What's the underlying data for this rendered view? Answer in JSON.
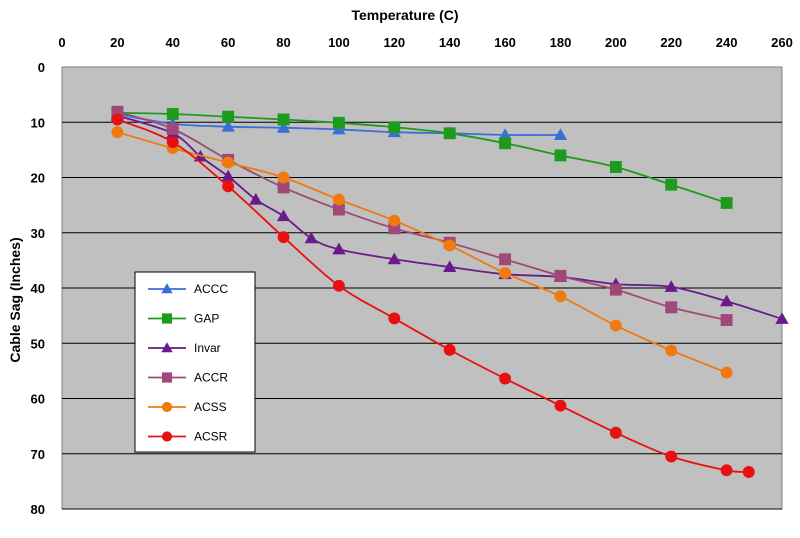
{
  "chart_data": {
    "type": "line",
    "xlabel": "Temperature (C)",
    "ylabel": "Cable Sag (Inches)",
    "xlim": [
      0,
      260
    ],
    "ylim": [
      0,
      80
    ],
    "x_ticks": [
      "0",
      "20",
      "40",
      "60",
      "80",
      "100",
      "120",
      "140",
      "160",
      "180",
      "200",
      "220",
      "240",
      "260"
    ],
    "y_ticks": [
      "0",
      "10",
      "20",
      "30",
      "40",
      "50",
      "60",
      "70",
      "80"
    ],
    "x_tick_values": [
      0,
      20,
      40,
      60,
      80,
      100,
      120,
      140,
      160,
      180,
      200,
      220,
      240,
      260
    ],
    "y_tick_values": [
      0,
      10,
      20,
      30,
      40,
      50,
      60,
      70,
      80
    ],
    "y_inverted": true,
    "x_axis_position": "top",
    "grid": "horizontal",
    "plot_background": "#c0c0c0",
    "legend_position": "lower-left",
    "series": [
      {
        "name": "ACCC",
        "color": "#3a6fd8",
        "marker": "triangle",
        "points": [
          [
            20,
            8.5
          ],
          [
            40,
            10.3
          ],
          [
            60,
            10.8
          ],
          [
            80,
            11.0
          ],
          [
            100,
            11.3
          ],
          [
            120,
            11.8
          ],
          [
            140,
            12.0
          ],
          [
            160,
            12.3
          ],
          [
            180,
            12.3
          ]
        ]
      },
      {
        "name": "GAP",
        "color": "#1e9a1e",
        "marker": "square",
        "points": [
          [
            20,
            8.3
          ],
          [
            40,
            8.5
          ],
          [
            60,
            9.0
          ],
          [
            80,
            9.5
          ],
          [
            100,
            10.1
          ],
          [
            120,
            10.9
          ],
          [
            140,
            12.0
          ],
          [
            160,
            13.8
          ],
          [
            180,
            16.0
          ],
          [
            200,
            18.1
          ],
          [
            220,
            21.3
          ],
          [
            240,
            24.6
          ]
        ]
      },
      {
        "name": "Invar",
        "color": "#6a1a8a",
        "marker": "triangle",
        "points": [
          [
            20,
            8.8
          ],
          [
            40,
            12.0
          ],
          [
            50,
            16.2
          ],
          [
            60,
            19.8
          ],
          [
            70,
            24.0
          ],
          [
            80,
            27.0
          ],
          [
            90,
            31.0
          ],
          [
            100,
            33.0
          ],
          [
            120,
            34.8
          ],
          [
            140,
            36.2
          ],
          [
            160,
            37.5
          ],
          [
            180,
            38.0
          ],
          [
            200,
            39.3
          ],
          [
            220,
            39.8
          ],
          [
            240,
            42.4
          ],
          [
            260,
            45.6
          ]
        ]
      },
      {
        "name": "ACCR",
        "color": "#a04878",
        "marker": "square",
        "points": [
          [
            20,
            8.1
          ],
          [
            40,
            11.2
          ],
          [
            60,
            16.8
          ],
          [
            80,
            21.8
          ],
          [
            100,
            25.8
          ],
          [
            120,
            29.2
          ],
          [
            140,
            31.8
          ],
          [
            160,
            34.8
          ],
          [
            180,
            37.8
          ],
          [
            200,
            40.3
          ],
          [
            220,
            43.5
          ],
          [
            240,
            45.8
          ]
        ]
      },
      {
        "name": "ACSS",
        "color": "#f07a10",
        "marker": "circle",
        "points": [
          [
            20,
            11.8
          ],
          [
            40,
            14.7
          ],
          [
            60,
            17.3
          ],
          [
            80,
            20.0
          ],
          [
            100,
            24.0
          ],
          [
            120,
            27.8
          ],
          [
            140,
            32.3
          ],
          [
            160,
            37.3
          ],
          [
            180,
            41.5
          ],
          [
            200,
            46.8
          ],
          [
            220,
            51.3
          ],
          [
            240,
            55.3
          ]
        ]
      },
      {
        "name": "ACSR",
        "color": "#e81010",
        "marker": "circle",
        "points": [
          [
            20,
            9.5
          ],
          [
            40,
            13.6
          ],
          [
            60,
            21.6
          ],
          [
            80,
            30.8
          ],
          [
            100,
            39.6
          ],
          [
            120,
            45.5
          ],
          [
            140,
            51.2
          ],
          [
            160,
            56.4
          ],
          [
            180,
            61.3
          ],
          [
            200,
            66.2
          ],
          [
            220,
            70.5
          ],
          [
            240,
            73.0
          ],
          [
            248,
            73.3
          ]
        ]
      }
    ]
  }
}
